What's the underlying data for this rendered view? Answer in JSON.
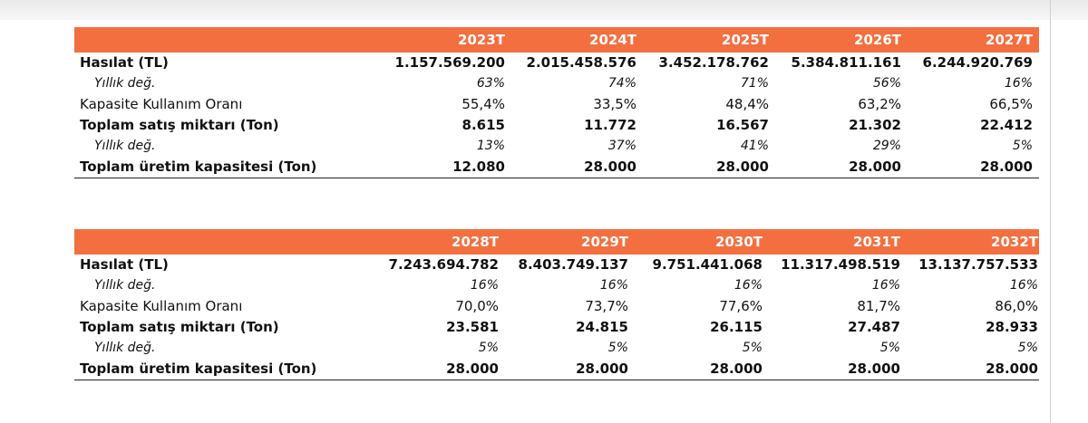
{
  "table1": {
    "years": [
      "2023T",
      "2024T",
      "2025T",
      "2026T",
      "2027T"
    ],
    "rows": [
      {
        "label": "Hasılat (TL)",
        "values": [
          "1.157.569.200",
          "2.015.458.576",
          "3.452.178.762",
          "5.384.811.161",
          "6.244.920.769"
        ]
      },
      {
        "label": "Yıllık değ.",
        "values": [
          "63%",
          "74%",
          "71%",
          "56%",
          "16%"
        ]
      },
      {
        "label": "Kapasite Kullanım Oranı",
        "values": [
          "55,4%",
          "33,5%",
          "48,4%",
          "63,2%",
          "66,5%"
        ]
      },
      {
        "label": "Toplam satış miktarı (Ton)",
        "values": [
          "8.615",
          "11.772",
          "16.567",
          "21.302",
          "22.412"
        ]
      },
      {
        "label": "Yıllık değ.",
        "values": [
          "13%",
          "37%",
          "41%",
          "29%",
          "5%"
        ]
      },
      {
        "label": "Toplam üretim kapasitesi (Ton)",
        "values": [
          "12.080",
          "28.000",
          "28.000",
          "28.000",
          "28.000"
        ]
      }
    ]
  },
  "table2": {
    "years": [
      "2028T",
      "2029T",
      "2030T",
      "2031T",
      "2032T"
    ],
    "rows": [
      {
        "label": "Hasılat (TL)",
        "values": [
          "7.243.694.782",
          "8.403.749.137",
          "9.751.441.068",
          "11.317.498.519",
          "13.137.757.533"
        ]
      },
      {
        "label": "Yıllık değ.",
        "values": [
          "16%",
          "16%",
          "16%",
          "16%",
          "16%"
        ]
      },
      {
        "label": "Kapasite Kullanım Oranı",
        "values": [
          "70,0%",
          "73,7%",
          "77,6%",
          "81,7%",
          "86,0%"
        ]
      },
      {
        "label": "Toplam satış miktarı (Ton)",
        "values": [
          "23.581",
          "24.815",
          "26.115",
          "27.487",
          "28.933"
        ]
      },
      {
        "label": "Yıllık değ.",
        "values": [
          "5%",
          "5%",
          "5%",
          "5%",
          "5%"
        ]
      },
      {
        "label": "Toplam üretim kapasitesi (Ton)",
        "values": [
          "28.000",
          "28.000",
          "28.000",
          "28.000",
          "28.000"
        ]
      }
    ]
  },
  "colors": {
    "header_bg": "#f36f40",
    "header_text": "#ffffff",
    "text": "#111111"
  }
}
